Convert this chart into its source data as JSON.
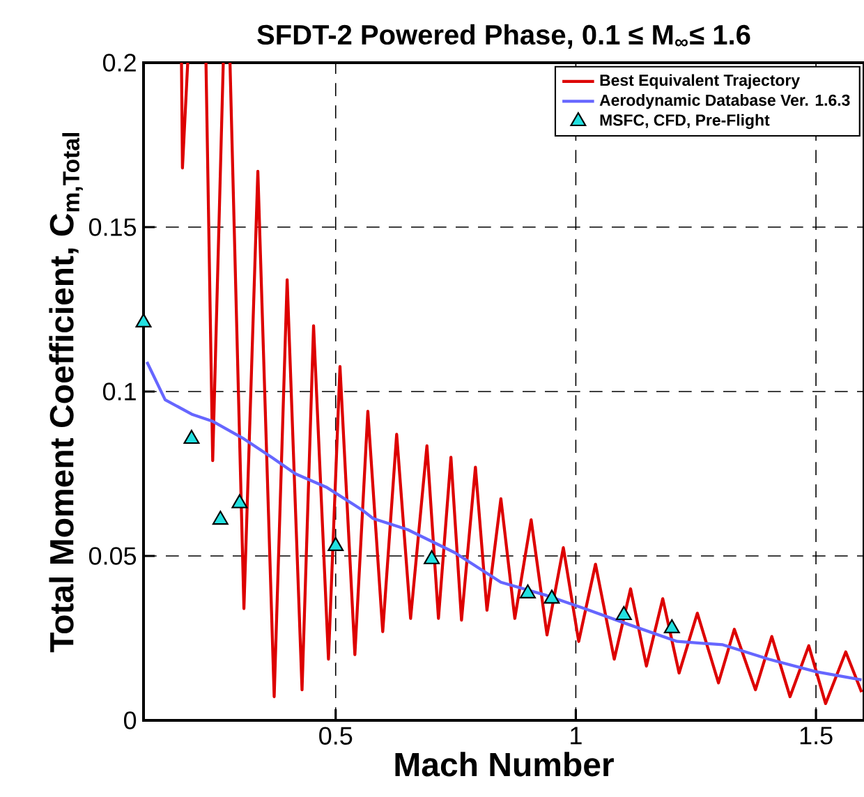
{
  "chart_data": {
    "type": "line",
    "title": "SFDT-2 Powered Phase, 0.1 ≤ M$_{∞}$≤ 1.6",
    "xlabel": "Mach Number",
    "ylabel": "Total Moment Coefficient, C$_{m,Total}$",
    "xlim": [
      0.1,
      1.6
    ],
    "ylim": [
      0,
      0.2
    ],
    "xticks": [
      0.5,
      1,
      1.5
    ],
    "yticks": [
      0,
      0.05,
      0.1,
      0.15,
      0.2
    ],
    "grid": true,
    "legend": "top right",
    "series": [
      {
        "name": "Best Equivalent Trajectory",
        "color": "#dd0000",
        "x": [
          0.179,
          0.181,
          0.192,
          0.21,
          0.23,
          0.244,
          0.266,
          0.273,
          0.28,
          0.309,
          0.338,
          0.372,
          0.399,
          0.43,
          0.454,
          0.485,
          0.509,
          0.54,
          0.567,
          0.598,
          0.627,
          0.656,
          0.69,
          0.714,
          0.74,
          0.762,
          0.791,
          0.815,
          0.844,
          0.873,
          0.907,
          0.94,
          0.974,
          1.006,
          1.041,
          1.08,
          1.114,
          1.147,
          1.181,
          1.215,
          1.253,
          1.297,
          1.33,
          1.374,
          1.408,
          1.446,
          1.485,
          1.52,
          1.562,
          1.595
        ],
        "values": [
          0.2,
          0.168,
          0.2,
          null,
          0.2,
          0.079,
          0.2,
          null,
          0.2,
          0.034,
          0.167,
          0.0072,
          0.134,
          0.0093,
          0.12,
          0.0186,
          0.1076,
          0.02,
          0.094,
          0.027,
          0.087,
          0.031,
          0.0835,
          0.031,
          0.08,
          0.0305,
          0.077,
          0.0335,
          0.0674,
          0.031,
          0.061,
          0.026,
          0.0525,
          0.024,
          0.0475,
          0.0186,
          0.04,
          0.0165,
          0.037,
          0.0144,
          0.0326,
          0.0114,
          0.0277,
          0.0093,
          0.0255,
          0.0072,
          0.0227,
          0.0051,
          0.0208,
          0.0086
        ]
      },
      {
        "name": "Aerodynamic Database Ver. 1.6.3",
        "color": "#6666ff",
        "x": [
          0.107,
          0.145,
          0.202,
          0.243,
          0.309,
          0.367,
          0.416,
          0.482,
          0.555,
          0.578,
          0.65,
          0.748,
          0.844,
          0.939,
          1.018,
          1.113,
          1.211,
          1.306,
          1.402,
          1.5,
          1.595
        ],
        "values": [
          0.109,
          0.0975,
          0.093,
          0.091,
          0.0856,
          0.08,
          0.075,
          0.0708,
          0.064,
          0.0614,
          0.058,
          0.051,
          0.042,
          0.038,
          0.034,
          0.029,
          0.024,
          0.023,
          0.0186,
          0.0148,
          0.0123
        ]
      },
      {
        "name": "MSFC, CFD, Pre-Flight",
        "type": "scatter",
        "marker": "triangle",
        "color": "#22e0e0",
        "x": [
          0.1,
          0.2,
          0.26,
          0.3,
          0.5,
          0.7,
          0.9,
          0.95,
          1.1,
          1.2
        ],
        "values": [
          0.121,
          0.0856,
          0.061,
          0.066,
          0.053,
          0.049,
          0.0386,
          0.037,
          0.032,
          0.028
        ]
      }
    ]
  }
}
